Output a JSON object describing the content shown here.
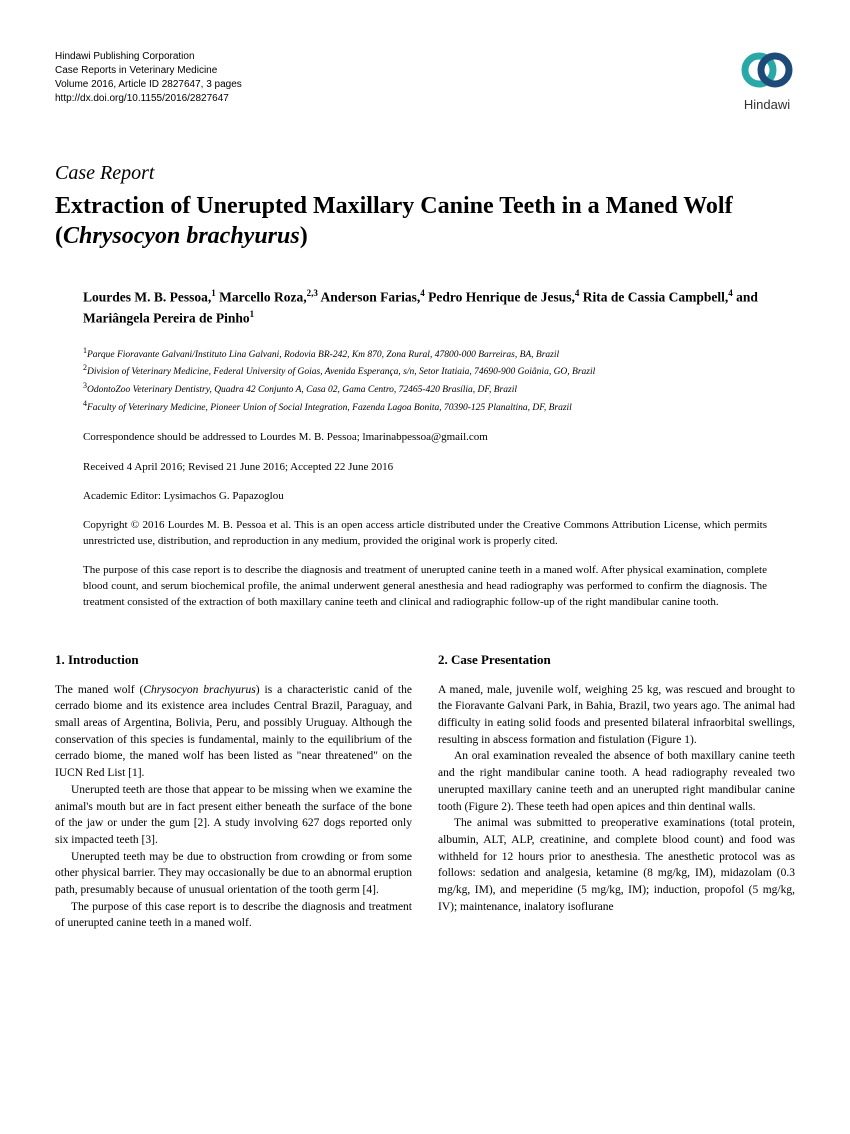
{
  "publisher": {
    "line1": "Hindawi Publishing Corporation",
    "line2": "Case Reports in Veterinary Medicine",
    "line3": "Volume 2016, Article ID 2827647, 3 pages",
    "line4": "http://dx.doi.org/10.1155/2016/2827647",
    "logo_text": "Hindawi",
    "logo_colors": {
      "ring1": "#2aa8a8",
      "ring2": "#1e4a7a"
    }
  },
  "article_type": "Case Report",
  "title_part1": "Extraction of Unerupted Maxillary Canine Teeth in a Maned Wolf (",
  "title_ital": "Chrysocyon brachyurus",
  "title_part2": ")",
  "authors_html": "Lourdes M. B. Pessoa,<sup>1</sup> Marcello Roza,<sup>2,3</sup> Anderson Farias,<sup>4</sup> Pedro Henrique de Jesus,<sup>4</sup> Rita de Cassia Campbell,<sup>4</sup> and Mariângela Pereira de Pinho<sup>1</sup>",
  "affiliations": [
    "<sup>1</sup>Parque Fioravante Galvani/Instituto Lina Galvani, Rodovia BR-242, Km 870, Zona Rural, 47800-000 Barreiras, BA, Brazil",
    "<sup>2</sup>Division of Veterinary Medicine, Federal University of Goias, Avenida Esperança, s/n, Setor Itatiaia, 74690-900 Goiânia, GO, Brazil",
    "<sup>3</sup>OdontoZoo Veterinary Dentistry, Quadra 42 Conjunto A, Casa 02, Gama Centro, 72465-420 Brasília, DF, Brazil",
    "<sup>4</sup>Faculty of Veterinary Medicine, Pioneer Union of Social Integration, Fazenda Lagoa Bonita, 70390-125 Planaltina, DF, Brazil"
  ],
  "correspondence": "Correspondence should be addressed to Lourdes M. B. Pessoa; lmarinabpessoa@gmail.com",
  "dates": "Received 4 April 2016; Revised 21 June 2016; Accepted 22 June 2016",
  "editor": "Academic Editor: Lysimachos G. Papazoglou",
  "copyright": "Copyright © 2016 Lourdes M. B. Pessoa et al. This is an open access article distributed under the Creative Commons Attribution License, which permits unrestricted use, distribution, and reproduction in any medium, provided the original work is properly cited.",
  "abstract": "The purpose of this case report is to describe the diagnosis and treatment of unerupted canine teeth in a maned wolf. After physical examination, complete blood count, and serum biochemical profile, the animal underwent general anesthesia and head radiography was performed to confirm the diagnosis. The treatment consisted of the extraction of both maxillary canine teeth and clinical and radiographic follow-up of the right mandibular canine tooth.",
  "sections": {
    "intro_head": "1. Introduction",
    "intro_p1_a": "The maned wolf (",
    "intro_p1_ital": "Chrysocyon brachyurus",
    "intro_p1_b": ") is a characteristic canid of the cerrado biome and its existence area includes Central Brazil, Paraguay, and small areas of Argentina, Bolivia, Peru, and possibly Uruguay. Although the conservation of this species is fundamental, mainly to the equilibrium of the cerrado biome, the maned wolf has been listed as \"near threatened\" on the IUCN Red List [1].",
    "intro_p2": "Unerupted teeth are those that appear to be missing when we examine the animal's mouth but are in fact present either beneath the surface of the bone of the jaw or under the gum [2]. A study involving 627 dogs reported only six impacted teeth [3].",
    "intro_p3": "Unerupted teeth may be due to obstruction from crowding or from some other physical barrier. They may occasionally be due to an abnormal eruption path, presumably because of unusual orientation of the tooth germ [4].",
    "intro_p4": "The purpose of this case report is to describe the diagnosis and treatment of unerupted canine teeth in a maned wolf.",
    "case_head": "2. Case Presentation",
    "case_p1": "A maned, male, juvenile wolf, weighing 25 kg, was rescued and brought to the Fioravante Galvani Park, in Bahia, Brazil, two years ago. The animal had difficulty in eating solid foods and presented bilateral infraorbital swellings, resulting in abscess formation and fistulation (Figure 1).",
    "case_p2": "An oral examination revealed the absence of both maxillary canine teeth and the right mandibular canine tooth. A head radiography revealed two unerupted maxillary canine teeth and an unerupted right mandibular canine tooth (Figure 2). These teeth had open apices and thin dentinal walls.",
    "case_p3": "The animal was submitted to preoperative examinations (total protein, albumin, ALT, ALP, creatinine, and complete blood count) and food was withheld for 12 hours prior to anesthesia. The anesthetic protocol was as follows: sedation and analgesia, ketamine (8 mg/kg, IM), midazolam (0.3 mg/kg, IM), and meperidine (5 mg/kg, IM); induction, propofol (5 mg/kg, IV); maintenance, inalatory isoflurane"
  },
  "style": {
    "page_bg": "#ffffff",
    "text_color": "#000000",
    "body_font_size_pt": 11.5,
    "title_font_size_pt": 24,
    "heading_font_size_pt": 13
  }
}
